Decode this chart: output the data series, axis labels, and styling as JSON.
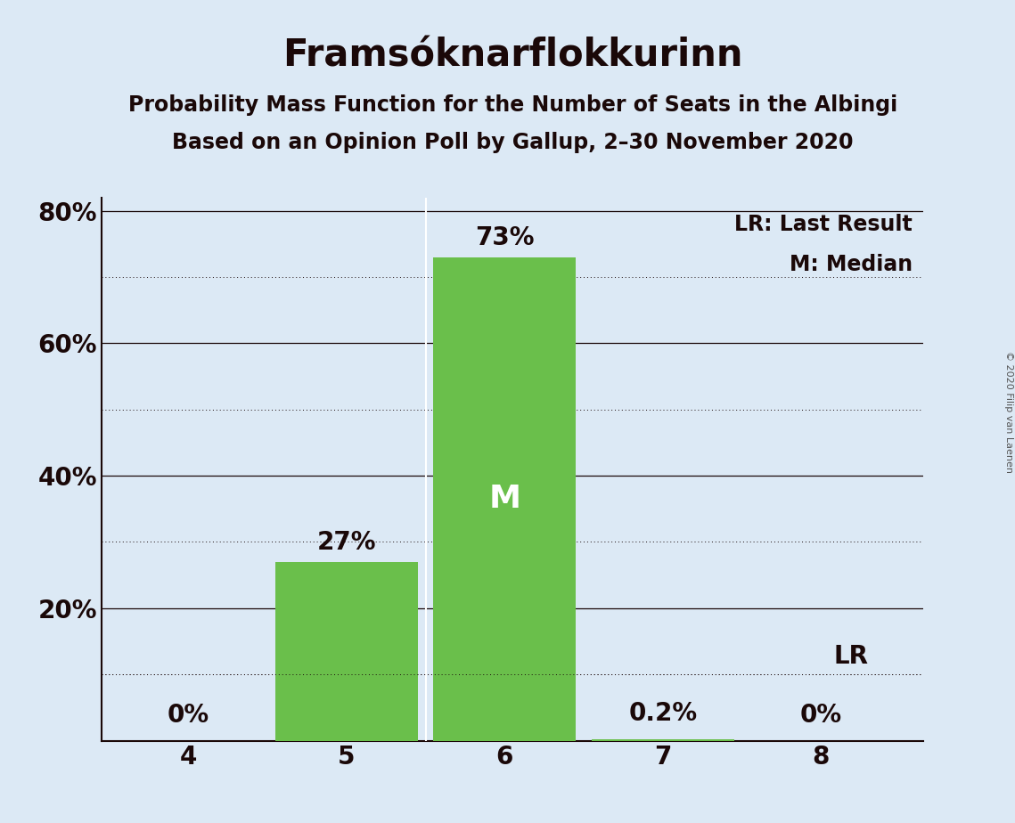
{
  "title": "Framsóknarflokkurinn",
  "subtitle1": "Probability Mass Function for the Number of Seats in the Albingi",
  "subtitle2": "Based on an Opinion Poll by Gallup, 2–30 November 2020",
  "copyright": "© 2020 Filip van Laenen",
  "categories": [
    4,
    5,
    6,
    7,
    8
  ],
  "values": [
    0,
    27,
    73,
    0.2,
    0
  ],
  "bar_color": "#6abf4b",
  "background_color": "#dce9f5",
  "ylim": [
    0,
    82
  ],
  "ytick_solid": [
    20,
    40,
    60,
    80
  ],
  "ytick_dotted": [
    10,
    30,
    50,
    70
  ],
  "median_seat": 6,
  "lr_seat": 8,
  "lr_value": 10,
  "title_fontsize": 30,
  "subtitle_fontsize": 17,
  "axis_tick_fontsize": 20,
  "bar_label_fontsize": 20,
  "median_label_fontsize": 26,
  "legend_fontsize": 17,
  "copyright_fontsize": 8
}
